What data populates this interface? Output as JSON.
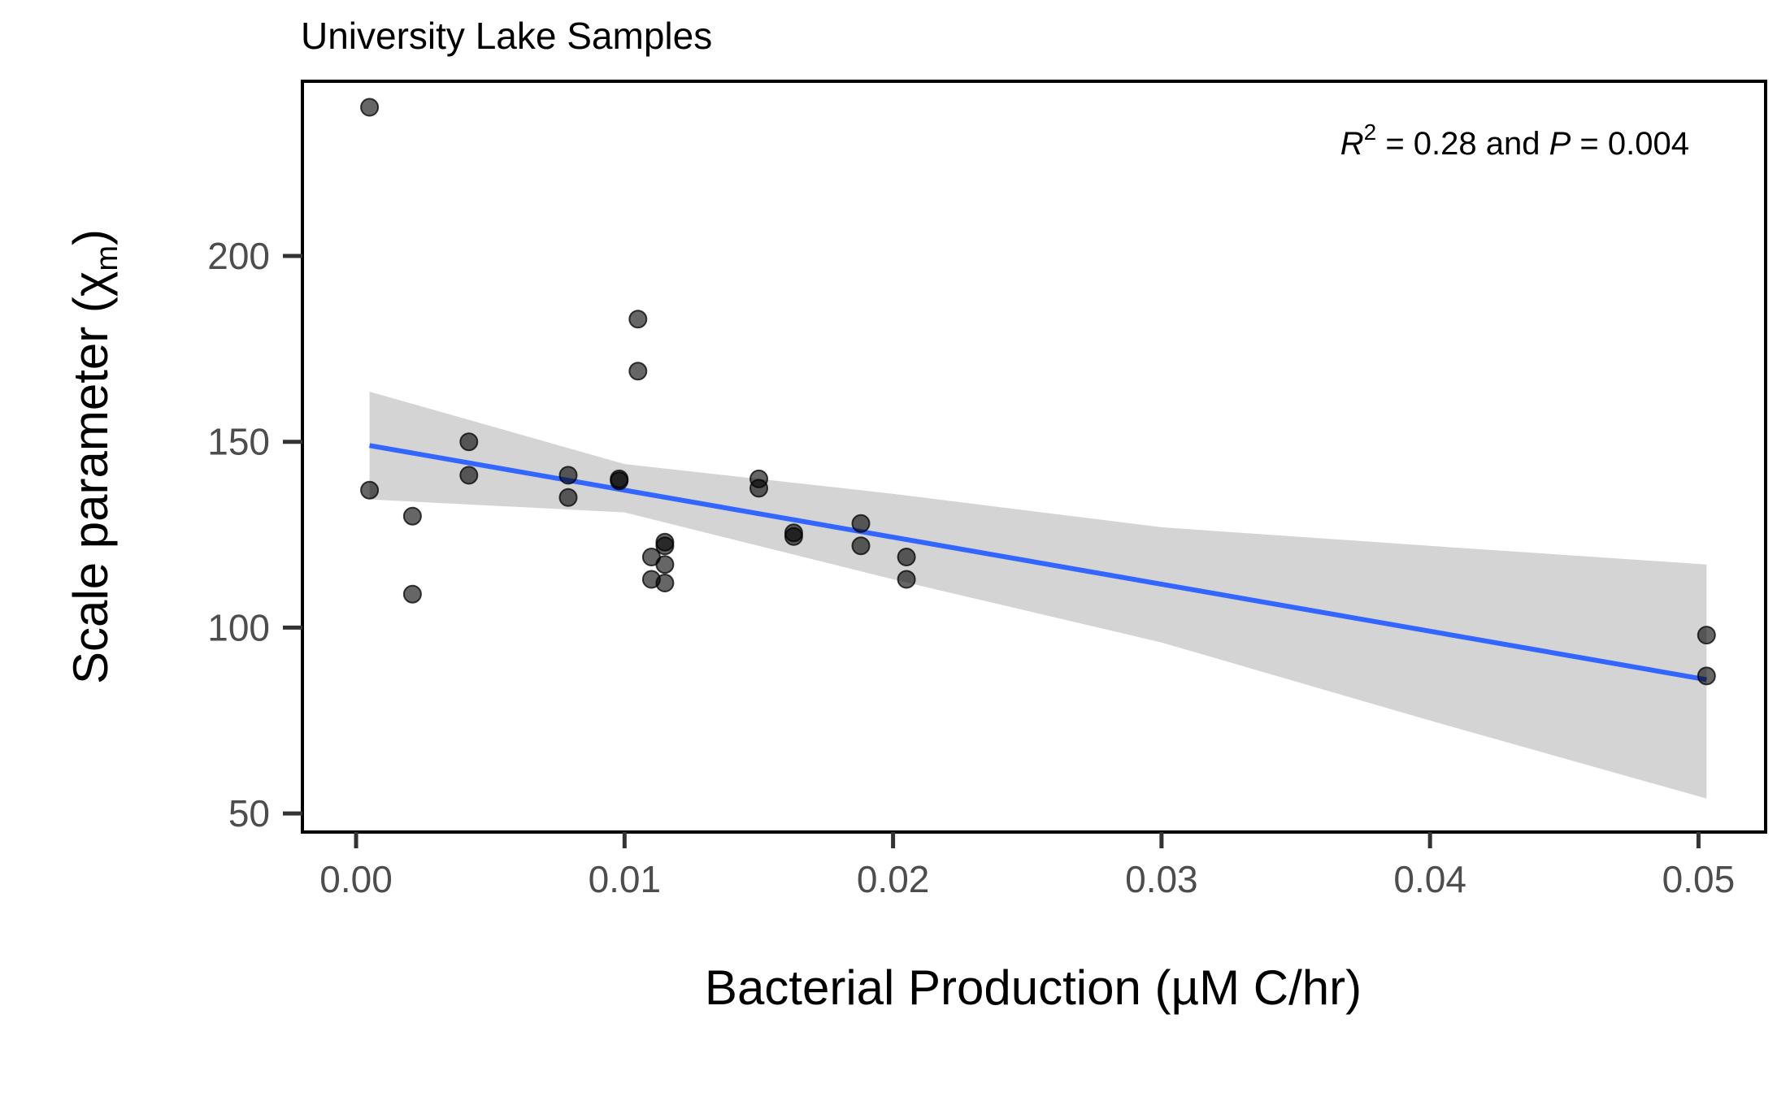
{
  "chart_data": {
    "type": "scatter",
    "title": "University Lake Samples",
    "xlabel": "Bacterial Production (µM C/hr)",
    "ylabel": "Scale parameter (χm)",
    "ylabel_main": "Scale parameter (χ",
    "ylabel_sub": "m",
    "ylabel_close": ")",
    "xlim": [
      -0.002,
      0.0525
    ],
    "ylim": [
      45,
      247
    ],
    "x_ticks": [
      0.0,
      0.01,
      0.02,
      0.03,
      0.04,
      0.05
    ],
    "x_tick_labels": [
      "0.00",
      "0.01",
      "0.02",
      "0.03",
      "0.04",
      "0.05"
    ],
    "y_ticks": [
      50,
      100,
      150,
      200
    ],
    "y_tick_labels": [
      "50",
      "100",
      "150",
      "200"
    ],
    "grid": false,
    "legend": "none",
    "annotation": {
      "r_symbol": "R",
      "r_exponent": "2",
      "mid_text": " = 0.28 and ",
      "p_symbol": "P",
      "end_text": " = 0.004"
    },
    "series": [
      {
        "points": [
          [
            0.0005,
            240
          ],
          [
            0.0005,
            137
          ],
          [
            0.0021,
            130
          ],
          [
            0.0021,
            109
          ],
          [
            0.0042,
            150
          ],
          [
            0.0042,
            141
          ],
          [
            0.0079,
            141
          ],
          [
            0.0079,
            135
          ],
          [
            0.0098,
            140
          ],
          [
            0.0098,
            139.5
          ],
          [
            0.0105,
            183
          ],
          [
            0.0105,
            169
          ],
          [
            0.011,
            119
          ],
          [
            0.011,
            113
          ],
          [
            0.0115,
            123
          ],
          [
            0.0115,
            122
          ],
          [
            0.0115,
            117
          ],
          [
            0.0115,
            112
          ],
          [
            0.015,
            140
          ],
          [
            0.015,
            137.5
          ],
          [
            0.0163,
            125.5
          ],
          [
            0.0163,
            124.5
          ],
          [
            0.0188,
            128
          ],
          [
            0.0188,
            122
          ],
          [
            0.0205,
            119
          ],
          [
            0.0205,
            113
          ],
          [
            0.0503,
            98
          ],
          [
            0.0503,
            87
          ]
        ]
      }
    ],
    "fit_line": {
      "x": [
        0.0005,
        0.0503
      ],
      "y": [
        149,
        86
      ]
    },
    "confidence_band": {
      "x": [
        0.0005,
        0.01,
        0.02,
        0.03,
        0.04,
        0.0503
      ],
      "upper": [
        163.5,
        144,
        136,
        127,
        122,
        117
      ],
      "lower": [
        134.5,
        131,
        113,
        96,
        75,
        54
      ]
    },
    "colors": {
      "points": "#000000",
      "points_opacity": 0.6,
      "fit_line": "#3366ff",
      "band": "#d4d4d4",
      "axis": "#333333",
      "frame": "#000000"
    }
  }
}
